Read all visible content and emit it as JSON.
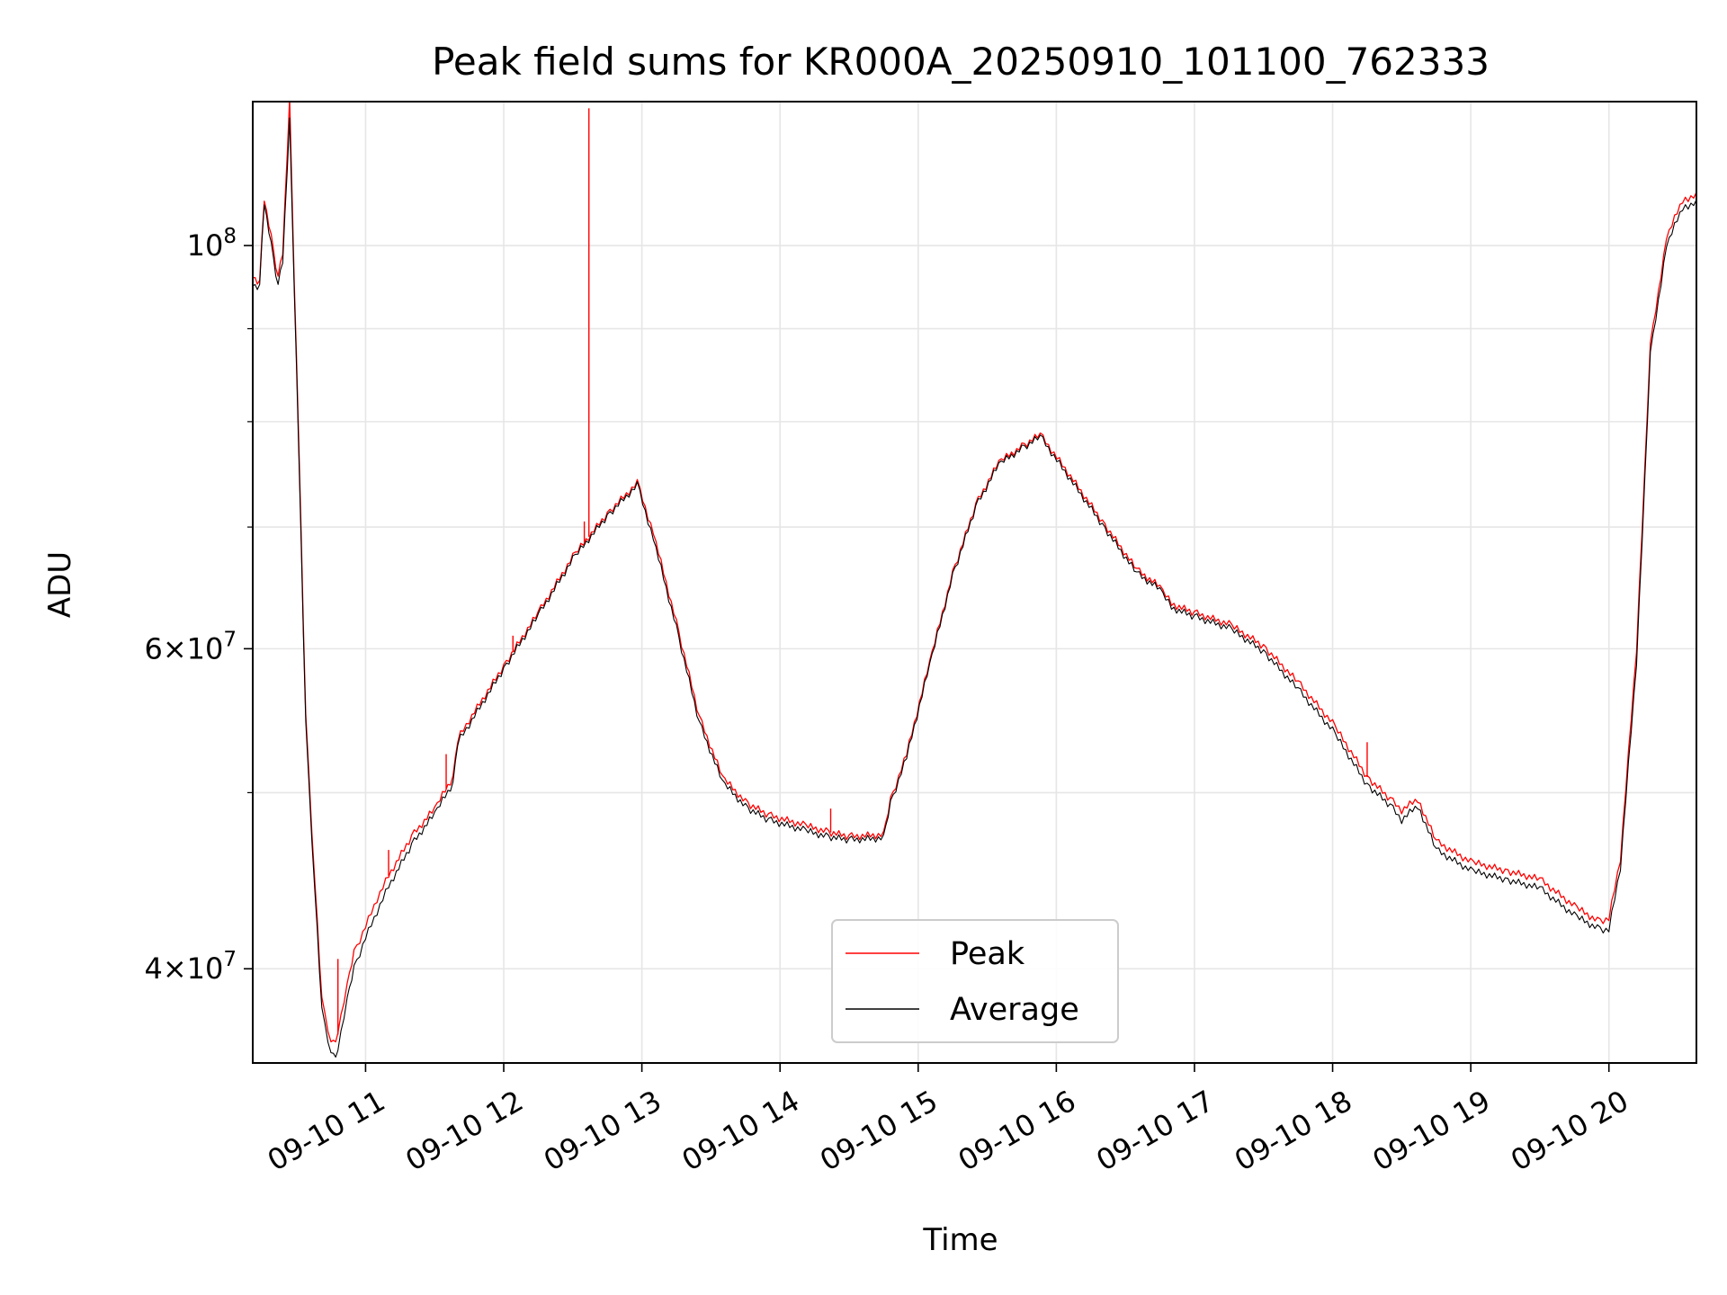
{
  "chart_data": {
    "type": "line",
    "title": "Peak field sums for KR000A_20250910_101100_762333",
    "xlabel": "Time",
    "ylabel": "ADU",
    "x_axis": "datetime",
    "y_scale": "log",
    "xlim": [
      "09-10 10:11",
      "09-10 20:38"
    ],
    "ylim": [
      35500000,
      120000000
    ],
    "grid": true,
    "legend_position": "lower center",
    "x_ticks": [
      {
        "value": "09-10 11:00",
        "label": "09-10 11"
      },
      {
        "value": "09-10 12:00",
        "label": "09-10 12"
      },
      {
        "value": "09-10 13:00",
        "label": "09-10 13"
      },
      {
        "value": "09-10 14:00",
        "label": "09-10 14"
      },
      {
        "value": "09-10 15:00",
        "label": "09-10 15"
      },
      {
        "value": "09-10 16:00",
        "label": "09-10 16"
      },
      {
        "value": "09-10 17:00",
        "label": "09-10 17"
      },
      {
        "value": "09-10 18:00",
        "label": "09-10 18"
      },
      {
        "value": "09-10 19:00",
        "label": "09-10 19"
      },
      {
        "value": "09-10 20:00",
        "label": "09-10 20"
      }
    ],
    "y_major_ticks": [
      {
        "value": 40000000,
        "mantissa": "4",
        "base": "10",
        "exp": "7"
      },
      {
        "value": 60000000,
        "mantissa": "6",
        "base": "10",
        "exp": "7"
      },
      {
        "value": 100000000,
        "mantissa": "",
        "base": "10",
        "exp": "8"
      }
    ],
    "y_minor_ticks": [
      50000000,
      70000000,
      80000000,
      90000000
    ],
    "series": [
      {
        "name": "Peak",
        "color": "#ff0000",
        "x": [
          "09-10 10:11",
          "09-10 10:14",
          "09-10 10:16",
          "09-10 10:19",
          "09-10 10:22",
          "09-10 10:24",
          "09-10 10:27",
          "09-10 10:29",
          "09-10 10:31",
          "09-10 10:34",
          "09-10 10:38",
          "09-10 10:41",
          "09-10 10:45",
          "09-10 10:48",
          "09-10 10:52",
          "09-10 10:55",
          "09-10 11:00",
          "09-10 11:05",
          "09-10 11:10",
          "09-10 11:20",
          "09-10 11:30",
          "09-10 11:38",
          "09-10 11:40",
          "09-10 11:45",
          "09-10 12:00",
          "09-10 12:15",
          "09-10 12:30",
          "09-10 12:45",
          "09-10 12:58",
          "09-10 13:05",
          "09-10 13:15",
          "09-10 13:25",
          "09-10 13:35",
          "09-10 13:45",
          "09-10 13:55",
          "09-10 14:10",
          "09-10 14:20",
          "09-10 14:30",
          "09-10 14:45",
          "09-10 14:48",
          "09-10 14:55",
          "09-10 15:05",
          "09-10 15:15",
          "09-10 15:25",
          "09-10 15:35",
          "09-10 15:45",
          "09-10 15:53",
          "09-10 16:05",
          "09-10 16:20",
          "09-10 16:35",
          "09-10 16:45",
          "09-10 16:50",
          "09-10 17:00",
          "09-10 17:15",
          "09-10 17:30",
          "09-10 17:45",
          "09-10 18:00",
          "09-10 18:15",
          "09-10 18:25",
          "09-10 18:30",
          "09-10 18:37",
          "09-10 18:45",
          "09-10 19:00",
          "09-10 19:15",
          "09-10 19:30",
          "09-10 19:45",
          "09-10 19:55",
          "09-10 20:00",
          "09-10 20:05",
          "09-10 20:12",
          "09-10 20:18",
          "09-10 20:25",
          "09-10 20:32",
          "09-10 20:38"
        ],
        "y": [
          96000000,
          95500000,
          106000000,
          101000000,
          96000000,
          99000000,
          120000000,
          96000000,
          78000000,
          55000000,
          44500000,
          38500000,
          36300000,
          36800000,
          39200000,
          40800000,
          42200000,
          43700000,
          45000000,
          47300000,
          49000000,
          51000000,
          53500000,
          54800000,
          58700000,
          62800000,
          67400000,
          71200000,
          74000000,
          69500000,
          62000000,
          55000000,
          51000000,
          49400000,
          48600000,
          48000000,
          47600000,
          47300000,
          47400000,
          49500000,
          52500000,
          59000000,
          66000000,
          72000000,
          76000000,
          77500000,
          78700000,
          75000000,
          70500000,
          66300000,
          64900000,
          63500000,
          62800000,
          61900000,
          60200000,
          57500000,
          54600000,
          51000000,
          49600000,
          48900000,
          49600000,
          47000000,
          45800000,
          45300000,
          44800000,
          43300000,
          42500000,
          42600000,
          46000000,
          60000000,
          88000000,
          101000000,
          106000000,
          106500000
        ]
      },
      {
        "name": "Average",
        "color": "#000000",
        "x": [
          "09-10 10:11",
          "09-10 10:14",
          "09-10 10:16",
          "09-10 10:19",
          "09-10 10:22",
          "09-10 10:24",
          "09-10 10:27",
          "09-10 10:29",
          "09-10 10:31",
          "09-10 10:34",
          "09-10 10:38",
          "09-10 10:41",
          "09-10 10:45",
          "09-10 10:48",
          "09-10 10:52",
          "09-10 10:55",
          "09-10 11:00",
          "09-10 11:05",
          "09-10 11:10",
          "09-10 11:20",
          "09-10 11:30",
          "09-10 11:38",
          "09-10 11:40",
          "09-10 11:45",
          "09-10 12:00",
          "09-10 12:15",
          "09-10 12:30",
          "09-10 12:45",
          "09-10 12:58",
          "09-10 13:05",
          "09-10 13:15",
          "09-10 13:25",
          "09-10 13:35",
          "09-10 13:45",
          "09-10 13:55",
          "09-10 14:10",
          "09-10 14:20",
          "09-10 14:30",
          "09-10 14:45",
          "09-10 14:48",
          "09-10 14:55",
          "09-10 15:05",
          "09-10 15:15",
          "09-10 15:25",
          "09-10 15:35",
          "09-10 15:45",
          "09-10 15:53",
          "09-10 16:05",
          "09-10 16:20",
          "09-10 16:35",
          "09-10 16:45",
          "09-10 16:50",
          "09-10 17:00",
          "09-10 17:15",
          "09-10 17:30",
          "09-10 17:45",
          "09-10 18:00",
          "09-10 18:15",
          "09-10 18:25",
          "09-10 18:30",
          "09-10 18:37",
          "09-10 18:45",
          "09-10 19:00",
          "09-10 19:15",
          "09-10 19:30",
          "09-10 19:45",
          "09-10 19:55",
          "09-10 20:00",
          "09-10 20:05",
          "09-10 20:12",
          "09-10 20:18",
          "09-10 20:25",
          "09-10 20:32",
          "09-10 20:38"
        ],
        "y": [
          95000000,
          95000000,
          105500000,
          100000000,
          95000000,
          98000000,
          117000000,
          95000000,
          77000000,
          54500000,
          44000000,
          38000000,
          35800000,
          36000000,
          38500000,
          40000000,
          41600000,
          43000000,
          44400000,
          46800000,
          48700000,
          50600000,
          53300000,
          54500000,
          58500000,
          62600000,
          67200000,
          71000000,
          73800000,
          69000000,
          61600000,
          54600000,
          50700000,
          49100000,
          48300000,
          47700000,
          47300000,
          47100000,
          47200000,
          49300000,
          52300000,
          58800000,
          65800000,
          71800000,
          75800000,
          77300000,
          78500000,
          74700000,
          70200000,
          66000000,
          64700000,
          63200000,
          62500000,
          61600000,
          59800000,
          57000000,
          54100000,
          50500000,
          49200000,
          48300000,
          49200000,
          46500000,
          45300000,
          44800000,
          44300000,
          42800000,
          42100000,
          42000000,
          45500000,
          59000000,
          87000000,
          100000000,
          105000000,
          105500000
        ]
      }
    ],
    "spikes": [
      {
        "series": "Peak",
        "x": "09-10 10:48",
        "y": 40500000
      },
      {
        "series": "Peak",
        "x": "09-10 11:10",
        "y": 46500000
      },
      {
        "series": "Peak",
        "x": "09-10 11:35",
        "y": 52500000
      },
      {
        "series": "Peak",
        "x": "09-10 12:04",
        "y": 61000000
      },
      {
        "series": "Peak",
        "x": "09-10 12:37",
        "y": 119000000
      },
      {
        "series": "Peak",
        "x": "09-10 12:35",
        "y": 70500000
      },
      {
        "series": "Peak",
        "x": "09-10 14:22",
        "y": 49000000
      },
      {
        "series": "Peak",
        "x": "09-10 18:15",
        "y": 53300000
      }
    ]
  }
}
